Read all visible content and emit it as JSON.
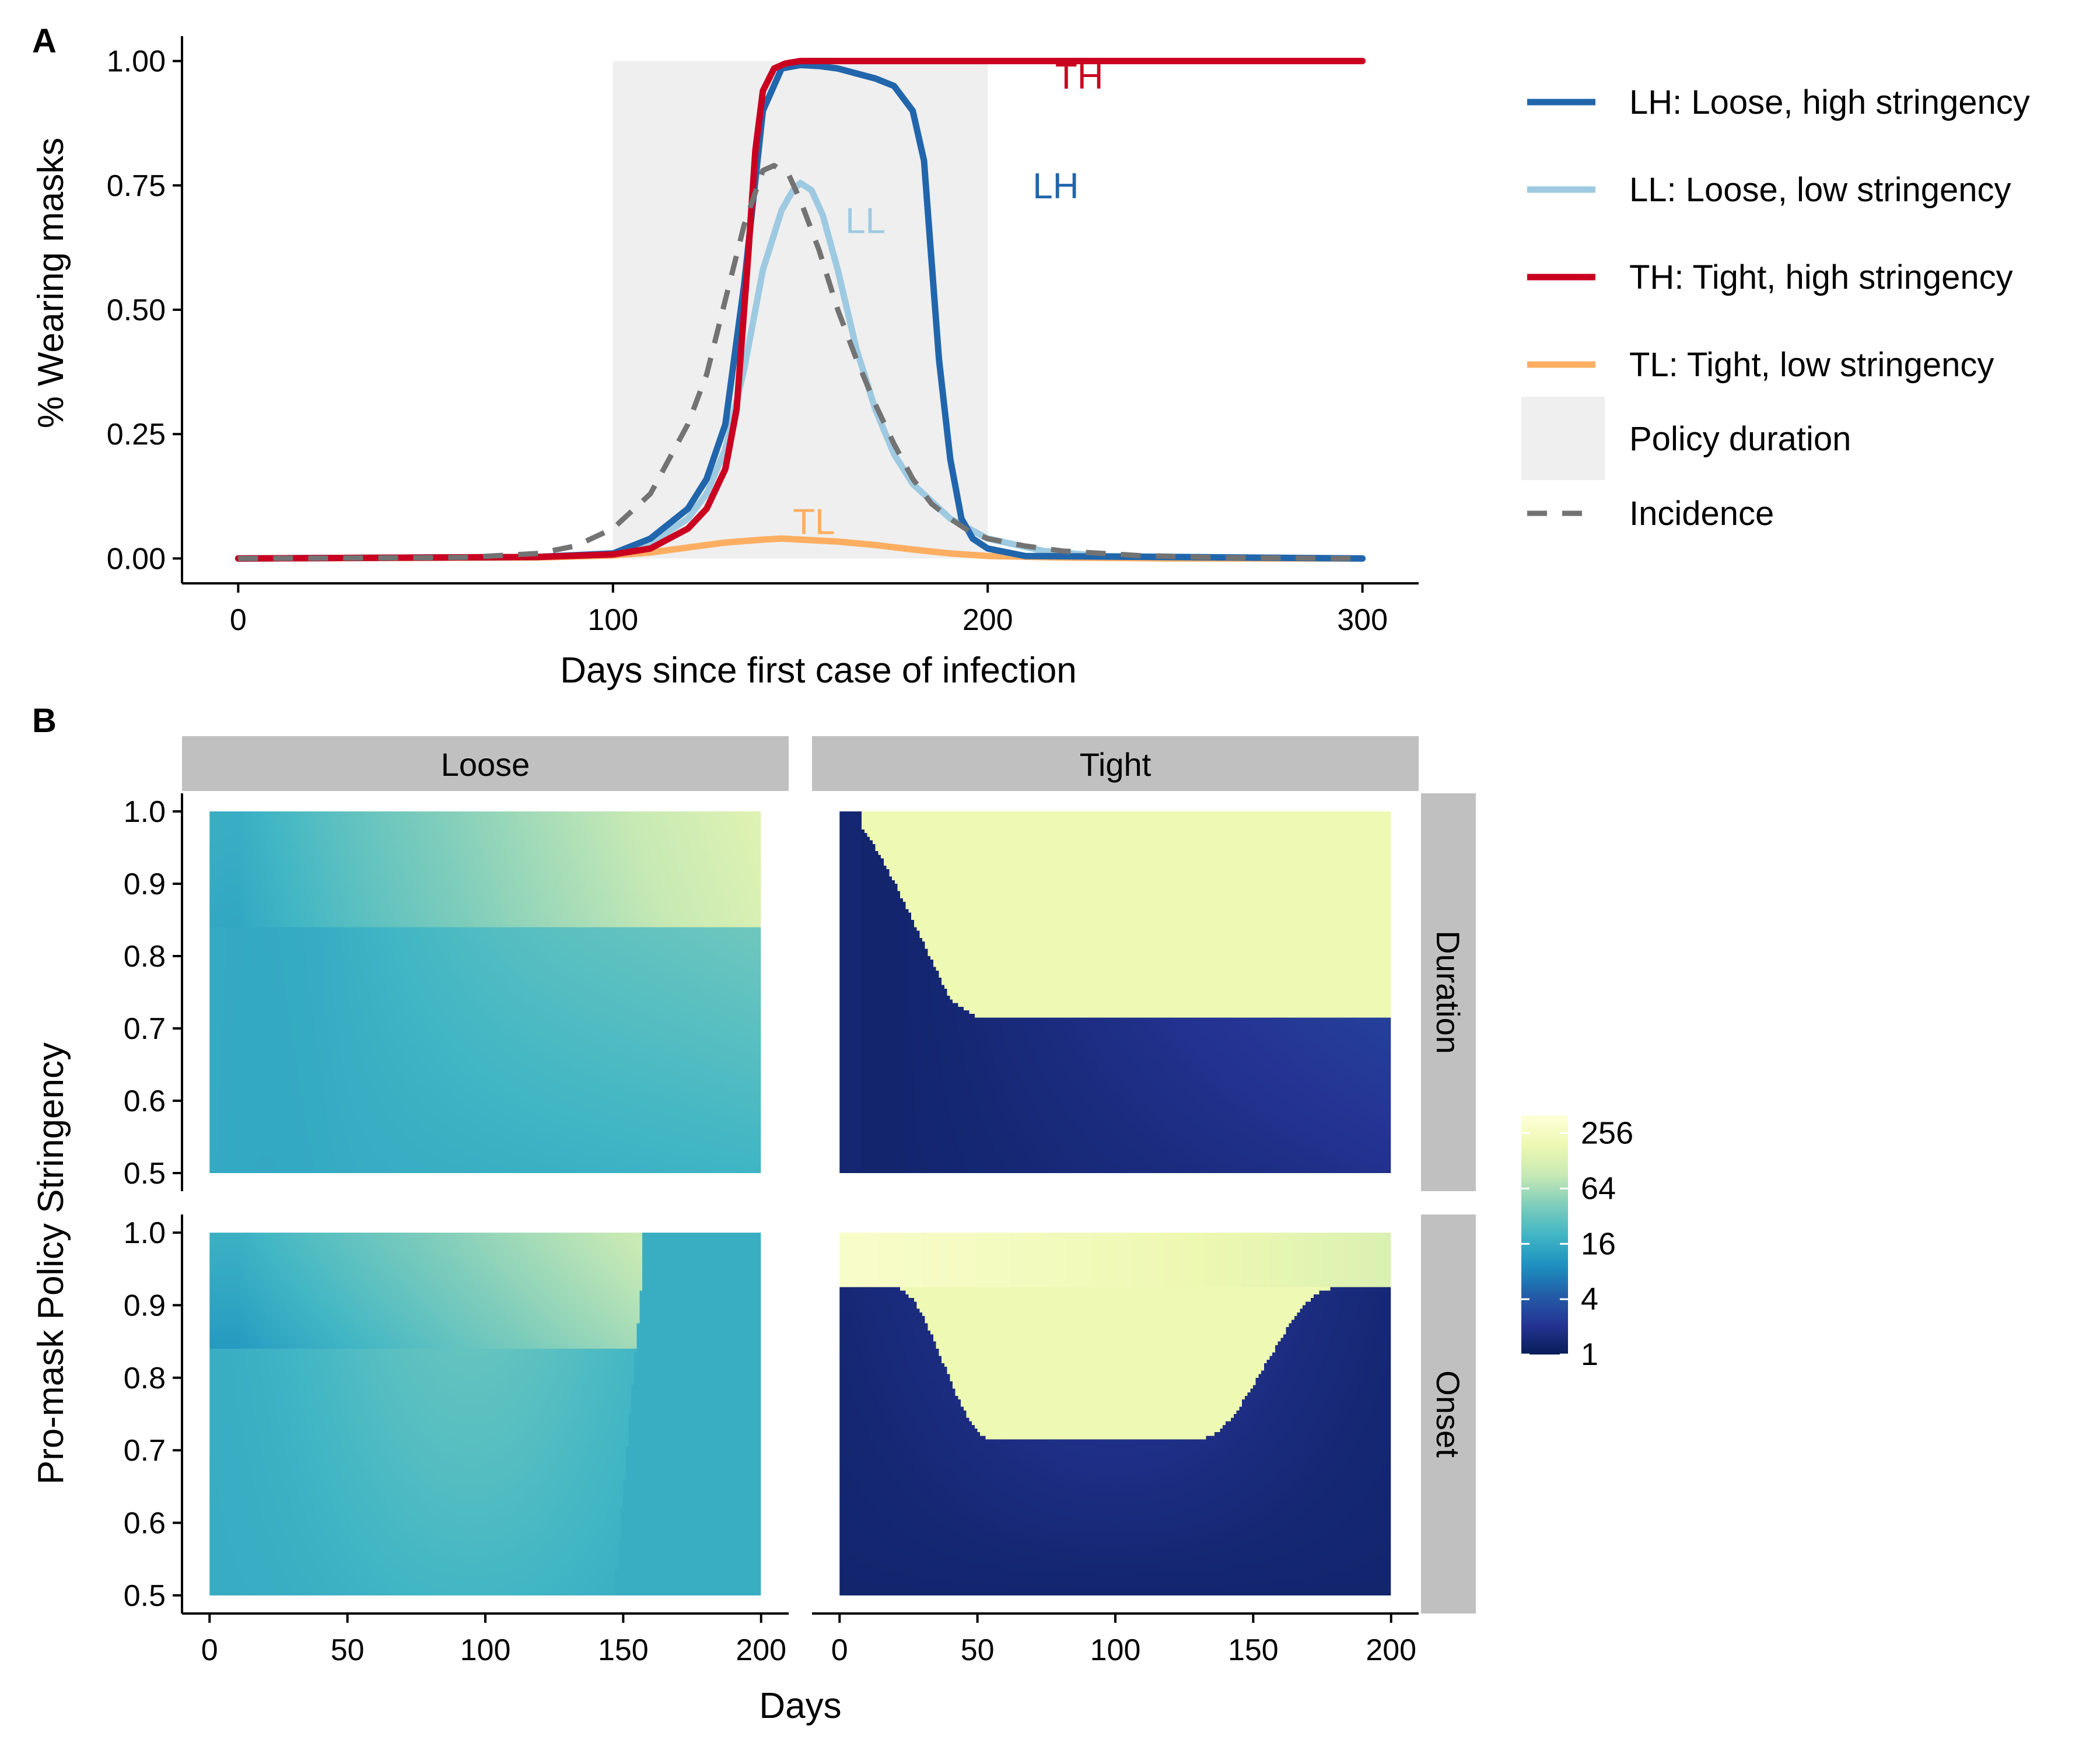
{
  "chart_data": [
    {
      "panel": "A",
      "type": "line",
      "xlabel": "Days since first case of infection",
      "ylabel": "% Wearing masks",
      "xlim": [
        -15,
        315
      ],
      "ylim": [
        -0.05,
        1.05
      ],
      "xticks": [
        0,
        100,
        200,
        300
      ],
      "yticks": [
        0.0,
        0.25,
        0.5,
        0.75,
        1.0
      ],
      "ytick_labels": [
        "0.00",
        "0.25",
        "0.50",
        "0.75",
        "1.00"
      ],
      "grid": false,
      "legend_position": "right",
      "policy_window": {
        "label": "Policy duration",
        "x": [
          100,
          200
        ],
        "color": "#efefef"
      },
      "series": [
        {
          "key": "LH",
          "name": "LH: Loose, high stringency",
          "label": "LH",
          "label_at": [
            212,
            0.75
          ],
          "color": "#2166ac",
          "x": [
            0,
            80,
            100,
            110,
            120,
            125,
            130,
            135,
            140,
            145,
            150,
            155,
            160,
            165,
            170,
            175,
            180,
            183,
            185,
            187,
            190,
            193,
            196,
            200,
            210,
            300
          ],
          "y": [
            0,
            0.003,
            0.01,
            0.04,
            0.1,
            0.16,
            0.27,
            0.55,
            0.9,
            0.985,
            0.992,
            0.99,
            0.985,
            0.975,
            0.965,
            0.95,
            0.9,
            0.8,
            0.6,
            0.4,
            0.2,
            0.08,
            0.04,
            0.02,
            0.005,
            0
          ]
        },
        {
          "key": "LL",
          "name": "LL: Loose, low stringency",
          "label": "LL",
          "label_at": [
            162,
            0.68
          ],
          "color": "#9ecae1",
          "x": [
            0,
            80,
            100,
            110,
            120,
            125,
            130,
            135,
            140,
            145,
            148,
            150,
            153,
            156,
            160,
            165,
            170,
            175,
            180,
            190,
            200,
            215,
            230,
            300
          ],
          "y": [
            0,
            0.003,
            0.01,
            0.03,
            0.08,
            0.13,
            0.22,
            0.38,
            0.58,
            0.7,
            0.74,
            0.755,
            0.74,
            0.69,
            0.58,
            0.42,
            0.3,
            0.21,
            0.15,
            0.08,
            0.04,
            0.015,
            0.005,
            0
          ]
        },
        {
          "key": "TH",
          "name": "TH: Tight, high stringency",
          "label": "TH",
          "label_at": [
            218,
            0.97
          ],
          "color": "#ca0020",
          "x": [
            0,
            80,
            100,
            110,
            120,
            125,
            130,
            133,
            136,
            138,
            140,
            143,
            146,
            150,
            160,
            200,
            300
          ],
          "y": [
            0,
            0.003,
            0.008,
            0.02,
            0.06,
            0.1,
            0.18,
            0.3,
            0.6,
            0.82,
            0.94,
            0.985,
            0.995,
            1.0,
            1.0,
            1.0,
            1.0
          ],
          "smooth": false
        },
        {
          "key": "TL",
          "name": "TL: Tight, low stringency",
          "label": "TL",
          "label_at": [
            148,
            0.075
          ],
          "color": "#fdae61",
          "x": [
            0,
            80,
            100,
            110,
            120,
            130,
            140,
            145,
            150,
            160,
            170,
            180,
            190,
            200,
            220,
            250,
            300
          ],
          "y": [
            0,
            0.002,
            0.006,
            0.012,
            0.022,
            0.032,
            0.038,
            0.04,
            0.038,
            0.034,
            0.027,
            0.018,
            0.01,
            0.005,
            0.002,
            0,
            0
          ]
        },
        {
          "key": "INC",
          "name": "Incidence",
          "color": "#737373",
          "dashed": true,
          "x": [
            0,
            60,
            80,
            90,
            100,
            110,
            120,
            125,
            130,
            135,
            140,
            143,
            147,
            150,
            155,
            160,
            165,
            170,
            175,
            180,
            185,
            190,
            195,
            200,
            210,
            220,
            240,
            260,
            300
          ],
          "y": [
            0,
            0.002,
            0.01,
            0.025,
            0.06,
            0.13,
            0.27,
            0.37,
            0.52,
            0.67,
            0.78,
            0.79,
            0.77,
            0.72,
            0.62,
            0.5,
            0.4,
            0.31,
            0.23,
            0.16,
            0.11,
            0.08,
            0.055,
            0.04,
            0.025,
            0.015,
            0.006,
            0.002,
            0
          ]
        }
      ]
    },
    {
      "panel": "B",
      "type": "heatmap",
      "xlabel": "Days",
      "ylabel": "Pro-mask Policy Stringency",
      "xlim": [
        -10,
        210
      ],
      "ylim": [
        0.475,
        1.025
      ],
      "xticks": [
        0,
        50,
        100,
        150,
        200
      ],
      "yticks": [
        0.5,
        0.6,
        0.7,
        0.8,
        0.9,
        1.0
      ],
      "ytick_labels": [
        "0.5",
        "0.6",
        "0.7",
        "0.8",
        "0.9",
        "1.0"
      ],
      "columns": [
        "Loose",
        "Tight"
      ],
      "rows": [
        "Duration",
        "Onset"
      ],
      "colorbar": {
        "scale": "log2",
        "ticks": [
          256,
          64,
          16,
          4,
          1
        ],
        "range": [
          1,
          400
        ],
        "colors": [
          "#081d58",
          "#253494",
          "#225ea8",
          "#1d91c0",
          "#41b6c4",
          "#7fcdbb",
          "#c7e9b4",
          "#edf8b1",
          "#ffffd9"
        ]
      },
      "cells": {
        "Loose-Duration": {
          "base": 17,
          "peak": 130,
          "threshold": 0.84,
          "above_growth": "rising with days",
          "below_value": 22
        },
        "Tight-Duration": {
          "threshold": 0.715,
          "above_value": 200,
          "below_value": 1.5,
          "boundary_days": [
            0,
            10,
            20,
            30,
            40,
            50,
            200
          ],
          "boundary_stringency": [
            1.0,
            0.97,
            0.9,
            0.82,
            0.74,
            0.715,
            0.715
          ]
        },
        "Loose-Onset": {
          "base": 17,
          "peak": 90,
          "threshold": 0.84,
          "drop_day": 157,
          "after_drop_value": 17
        },
        "Tight-Onset": {
          "top_band": [
            0.925,
            1.0
          ],
          "top_value": 300,
          "threshold": 0.715,
          "above_value": 200,
          "below_value": 1.5
        }
      }
    }
  ]
}
